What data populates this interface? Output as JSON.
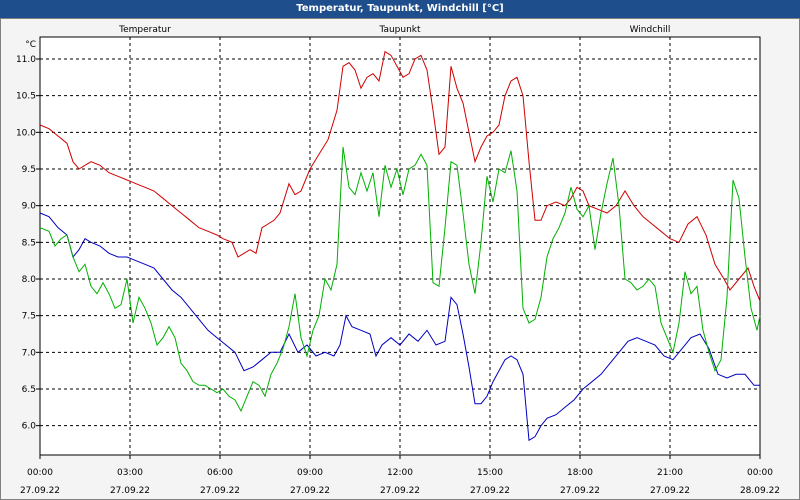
{
  "window": {
    "title": "Temperatur, Taupunkt, Windchill [°C]"
  },
  "chart_data": {
    "type": "line",
    "unit_label": "°C",
    "ylim": [
      5.6,
      11.3
    ],
    "y_ticks": [
      6.0,
      6.5,
      7.0,
      7.5,
      8.0,
      8.5,
      9.0,
      9.5,
      10.0,
      10.5,
      11.0
    ],
    "x_hours_range": [
      0,
      24
    ],
    "x_ticks": [
      {
        "time": "00:00",
        "date": "27.09.22",
        "h": 0
      },
      {
        "time": "03:00",
        "date": "27.09.22",
        "h": 3
      },
      {
        "time": "06:00",
        "date": "27.09.22",
        "h": 6
      },
      {
        "time": "09:00",
        "date": "27.09.22",
        "h": 9
      },
      {
        "time": "12:00",
        "date": "27.09.22",
        "h": 12
      },
      {
        "time": "15:00",
        "date": "27.09.22",
        "h": 15
      },
      {
        "time": "18:00",
        "date": "27.09.22",
        "h": 18
      },
      {
        "time": "21:00",
        "date": "27.09.22",
        "h": 21
      },
      {
        "time": "00:00",
        "date": "28.09.22",
        "h": 24
      }
    ],
    "grid": true,
    "series": [
      {
        "name": "Temperatur",
        "color": "#d00000",
        "points": [
          [
            0,
            10.1
          ],
          [
            0.3,
            10.05
          ],
          [
            0.6,
            9.95
          ],
          [
            0.9,
            9.85
          ],
          [
            1.1,
            9.6
          ],
          [
            1.3,
            9.5
          ],
          [
            1.5,
            9.55
          ],
          [
            1.7,
            9.6
          ],
          [
            2.0,
            9.55
          ],
          [
            2.3,
            9.45
          ],
          [
            2.6,
            9.4
          ],
          [
            2.9,
            9.35
          ],
          [
            3.2,
            9.3
          ],
          [
            3.5,
            9.25
          ],
          [
            3.8,
            9.2
          ],
          [
            4.1,
            9.1
          ],
          [
            4.4,
            9.0
          ],
          [
            4.7,
            8.9
          ],
          [
            5.0,
            8.8
          ],
          [
            5.3,
            8.7
          ],
          [
            5.6,
            8.65
          ],
          [
            5.9,
            8.6
          ],
          [
            6.1,
            8.55
          ],
          [
            6.4,
            8.5
          ],
          [
            6.6,
            8.3
          ],
          [
            6.8,
            8.35
          ],
          [
            7.0,
            8.4
          ],
          [
            7.2,
            8.35
          ],
          [
            7.4,
            8.7
          ],
          [
            7.6,
            8.75
          ],
          [
            7.8,
            8.8
          ],
          [
            8.0,
            8.9
          ],
          [
            8.3,
            9.3
          ],
          [
            8.5,
            9.15
          ],
          [
            8.7,
            9.2
          ],
          [
            9.0,
            9.5
          ],
          [
            9.3,
            9.7
          ],
          [
            9.6,
            9.9
          ],
          [
            9.9,
            10.3
          ],
          [
            10.1,
            10.9
          ],
          [
            10.3,
            10.95
          ],
          [
            10.5,
            10.85
          ],
          [
            10.7,
            10.6
          ],
          [
            10.9,
            10.75
          ],
          [
            11.1,
            10.8
          ],
          [
            11.3,
            10.7
          ],
          [
            11.5,
            11.1
          ],
          [
            11.7,
            11.05
          ],
          [
            11.9,
            10.9
          ],
          [
            12.1,
            10.75
          ],
          [
            12.3,
            10.8
          ],
          [
            12.5,
            11.0
          ],
          [
            12.7,
            11.05
          ],
          [
            12.9,
            10.85
          ],
          [
            13.1,
            10.3
          ],
          [
            13.3,
            9.7
          ],
          [
            13.5,
            9.8
          ],
          [
            13.7,
            10.9
          ],
          [
            13.9,
            10.6
          ],
          [
            14.1,
            10.4
          ],
          [
            14.3,
            10.0
          ],
          [
            14.5,
            9.6
          ],
          [
            14.7,
            9.8
          ],
          [
            14.9,
            9.95
          ],
          [
            15.1,
            10.0
          ],
          [
            15.3,
            10.1
          ],
          [
            15.5,
            10.5
          ],
          [
            15.7,
            10.7
          ],
          [
            15.9,
            10.75
          ],
          [
            16.1,
            10.5
          ],
          [
            16.3,
            9.6
          ],
          [
            16.5,
            8.8
          ],
          [
            16.7,
            8.8
          ],
          [
            16.9,
            9.0
          ],
          [
            17.2,
            9.05
          ],
          [
            17.5,
            9.0
          ],
          [
            17.7,
            9.1
          ],
          [
            17.9,
            9.25
          ],
          [
            18.1,
            9.2
          ],
          [
            18.3,
            9.0
          ],
          [
            18.6,
            8.95
          ],
          [
            18.9,
            8.9
          ],
          [
            19.2,
            9.0
          ],
          [
            19.5,
            9.2
          ],
          [
            19.8,
            9.0
          ],
          [
            20.1,
            8.85
          ],
          [
            20.4,
            8.75
          ],
          [
            20.7,
            8.65
          ],
          [
            21.0,
            8.55
          ],
          [
            21.3,
            8.5
          ],
          [
            21.6,
            8.75
          ],
          [
            21.9,
            8.85
          ],
          [
            22.2,
            8.6
          ],
          [
            22.5,
            8.2
          ],
          [
            22.8,
            8.0
          ],
          [
            23.0,
            7.85
          ],
          [
            23.3,
            8.0
          ],
          [
            23.6,
            8.15
          ],
          [
            23.8,
            7.9
          ],
          [
            24.0,
            7.7
          ]
        ]
      },
      {
        "name": "Taupunkt",
        "color": "#0000c0",
        "points": [
          [
            0,
            8.9
          ],
          [
            0.3,
            8.85
          ],
          [
            0.6,
            8.7
          ],
          [
            0.9,
            8.6
          ],
          [
            1.1,
            8.3
          ],
          [
            1.3,
            8.4
          ],
          [
            1.5,
            8.55
          ],
          [
            1.7,
            8.5
          ],
          [
            2.0,
            8.45
          ],
          [
            2.3,
            8.35
          ],
          [
            2.6,
            8.3
          ],
          [
            2.9,
            8.3
          ],
          [
            3.2,
            8.25
          ],
          [
            3.5,
            8.2
          ],
          [
            3.8,
            8.15
          ],
          [
            4.1,
            8.0
          ],
          [
            4.4,
            7.85
          ],
          [
            4.7,
            7.75
          ],
          [
            5.0,
            7.6
          ],
          [
            5.3,
            7.45
          ],
          [
            5.6,
            7.3
          ],
          [
            5.9,
            7.2
          ],
          [
            6.2,
            7.1
          ],
          [
            6.5,
            7.0
          ],
          [
            6.8,
            6.75
          ],
          [
            7.1,
            6.8
          ],
          [
            7.4,
            6.9
          ],
          [
            7.7,
            7.0
          ],
          [
            8.0,
            7.0
          ],
          [
            8.3,
            7.25
          ],
          [
            8.6,
            7.0
          ],
          [
            8.9,
            7.1
          ],
          [
            9.2,
            6.95
          ],
          [
            9.5,
            7.0
          ],
          [
            9.8,
            6.95
          ],
          [
            10.0,
            7.1
          ],
          [
            10.2,
            7.5
          ],
          [
            10.4,
            7.35
          ],
          [
            10.7,
            7.3
          ],
          [
            11.0,
            7.25
          ],
          [
            11.2,
            6.95
          ],
          [
            11.4,
            7.1
          ],
          [
            11.7,
            7.2
          ],
          [
            12.0,
            7.1
          ],
          [
            12.3,
            7.25
          ],
          [
            12.6,
            7.15
          ],
          [
            12.9,
            7.3
          ],
          [
            13.2,
            7.1
          ],
          [
            13.5,
            7.15
          ],
          [
            13.7,
            7.75
          ],
          [
            13.9,
            7.65
          ],
          [
            14.1,
            7.25
          ],
          [
            14.3,
            6.8
          ],
          [
            14.5,
            6.3
          ],
          [
            14.7,
            6.3
          ],
          [
            14.9,
            6.4
          ],
          [
            15.1,
            6.6
          ],
          [
            15.3,
            6.75
          ],
          [
            15.5,
            6.9
          ],
          [
            15.7,
            6.95
          ],
          [
            15.9,
            6.9
          ],
          [
            16.1,
            6.7
          ],
          [
            16.3,
            5.8
          ],
          [
            16.5,
            5.85
          ],
          [
            16.7,
            6.0
          ],
          [
            16.9,
            6.1
          ],
          [
            17.2,
            6.15
          ],
          [
            17.5,
            6.25
          ],
          [
            17.8,
            6.35
          ],
          [
            18.1,
            6.5
          ],
          [
            18.4,
            6.6
          ],
          [
            18.7,
            6.7
          ],
          [
            19.0,
            6.85
          ],
          [
            19.3,
            7.0
          ],
          [
            19.6,
            7.15
          ],
          [
            19.9,
            7.2
          ],
          [
            20.2,
            7.15
          ],
          [
            20.5,
            7.1
          ],
          [
            20.8,
            6.95
          ],
          [
            21.1,
            6.9
          ],
          [
            21.4,
            7.05
          ],
          [
            21.7,
            7.2
          ],
          [
            22.0,
            7.25
          ],
          [
            22.3,
            7.05
          ],
          [
            22.6,
            6.7
          ],
          [
            22.9,
            6.65
          ],
          [
            23.2,
            6.7
          ],
          [
            23.5,
            6.7
          ],
          [
            23.8,
            6.55
          ],
          [
            24.0,
            6.55
          ]
        ]
      },
      {
        "name": "Windchill",
        "color": "#00b000",
        "points": [
          [
            0,
            8.7
          ],
          [
            0.3,
            8.65
          ],
          [
            0.5,
            8.45
          ],
          [
            0.7,
            8.55
          ],
          [
            0.9,
            8.6
          ],
          [
            1.1,
            8.3
          ],
          [
            1.3,
            8.1
          ],
          [
            1.5,
            8.2
          ],
          [
            1.7,
            7.9
          ],
          [
            1.9,
            7.8
          ],
          [
            2.1,
            7.95
          ],
          [
            2.3,
            7.8
          ],
          [
            2.5,
            7.6
          ],
          [
            2.7,
            7.65
          ],
          [
            2.9,
            8.0
          ],
          [
            3.1,
            7.4
          ],
          [
            3.3,
            7.75
          ],
          [
            3.5,
            7.6
          ],
          [
            3.7,
            7.4
          ],
          [
            3.9,
            7.1
          ],
          [
            4.1,
            7.2
          ],
          [
            4.3,
            7.35
          ],
          [
            4.5,
            7.2
          ],
          [
            4.7,
            6.85
          ],
          [
            4.9,
            6.75
          ],
          [
            5.1,
            6.6
          ],
          [
            5.3,
            6.55
          ],
          [
            5.5,
            6.55
          ],
          [
            5.7,
            6.5
          ],
          [
            5.9,
            6.45
          ],
          [
            6.1,
            6.5
          ],
          [
            6.3,
            6.4
          ],
          [
            6.5,
            6.35
          ],
          [
            6.7,
            6.2
          ],
          [
            6.9,
            6.4
          ],
          [
            7.1,
            6.6
          ],
          [
            7.3,
            6.55
          ],
          [
            7.5,
            6.4
          ],
          [
            7.7,
            6.7
          ],
          [
            7.9,
            6.85
          ],
          [
            8.1,
            7.05
          ],
          [
            8.3,
            7.35
          ],
          [
            8.5,
            7.8
          ],
          [
            8.7,
            7.2
          ],
          [
            8.9,
            6.95
          ],
          [
            9.1,
            7.3
          ],
          [
            9.3,
            7.5
          ],
          [
            9.5,
            8.0
          ],
          [
            9.7,
            7.85
          ],
          [
            9.9,
            8.2
          ],
          [
            10.1,
            9.8
          ],
          [
            10.3,
            9.25
          ],
          [
            10.5,
            9.15
          ],
          [
            10.7,
            9.45
          ],
          [
            10.9,
            9.2
          ],
          [
            11.1,
            9.45
          ],
          [
            11.3,
            8.85
          ],
          [
            11.5,
            9.55
          ],
          [
            11.7,
            9.25
          ],
          [
            11.9,
            9.5
          ],
          [
            12.1,
            9.15
          ],
          [
            12.3,
            9.5
          ],
          [
            12.5,
            9.55
          ],
          [
            12.7,
            9.7
          ],
          [
            12.9,
            9.55
          ],
          [
            13.1,
            7.95
          ],
          [
            13.3,
            7.9
          ],
          [
            13.5,
            8.7
          ],
          [
            13.7,
            9.6
          ],
          [
            13.9,
            9.55
          ],
          [
            14.1,
            8.9
          ],
          [
            14.3,
            8.2
          ],
          [
            14.5,
            7.8
          ],
          [
            14.7,
            8.5
          ],
          [
            14.9,
            9.4
          ],
          [
            15.1,
            9.05
          ],
          [
            15.3,
            9.5
          ],
          [
            15.5,
            9.45
          ],
          [
            15.7,
            9.75
          ],
          [
            15.9,
            9.2
          ],
          [
            16.1,
            7.6
          ],
          [
            16.3,
            7.4
          ],
          [
            16.5,
            7.45
          ],
          [
            16.7,
            7.75
          ],
          [
            16.9,
            8.3
          ],
          [
            17.1,
            8.55
          ],
          [
            17.3,
            8.7
          ],
          [
            17.5,
            8.9
          ],
          [
            17.7,
            9.25
          ],
          [
            17.9,
            8.95
          ],
          [
            18.1,
            8.85
          ],
          [
            18.3,
            9.0
          ],
          [
            18.5,
            8.4
          ],
          [
            18.7,
            8.9
          ],
          [
            18.9,
            9.3
          ],
          [
            19.1,
            9.65
          ],
          [
            19.3,
            9.0
          ],
          [
            19.5,
            8.0
          ],
          [
            19.7,
            7.95
          ],
          [
            19.9,
            7.85
          ],
          [
            20.1,
            7.9
          ],
          [
            20.3,
            8.0
          ],
          [
            20.5,
            7.9
          ],
          [
            20.7,
            7.4
          ],
          [
            20.9,
            7.2
          ],
          [
            21.1,
            7.0
          ],
          [
            21.3,
            7.4
          ],
          [
            21.5,
            8.1
          ],
          [
            21.7,
            7.8
          ],
          [
            21.9,
            7.9
          ],
          [
            22.1,
            7.3
          ],
          [
            22.3,
            7.0
          ],
          [
            22.5,
            6.75
          ],
          [
            22.7,
            6.9
          ],
          [
            22.9,
            7.75
          ],
          [
            23.1,
            9.35
          ],
          [
            23.3,
            9.1
          ],
          [
            23.5,
            8.3
          ],
          [
            23.7,
            7.6
          ],
          [
            23.9,
            7.3
          ],
          [
            24.0,
            7.5
          ]
        ]
      }
    ]
  }
}
